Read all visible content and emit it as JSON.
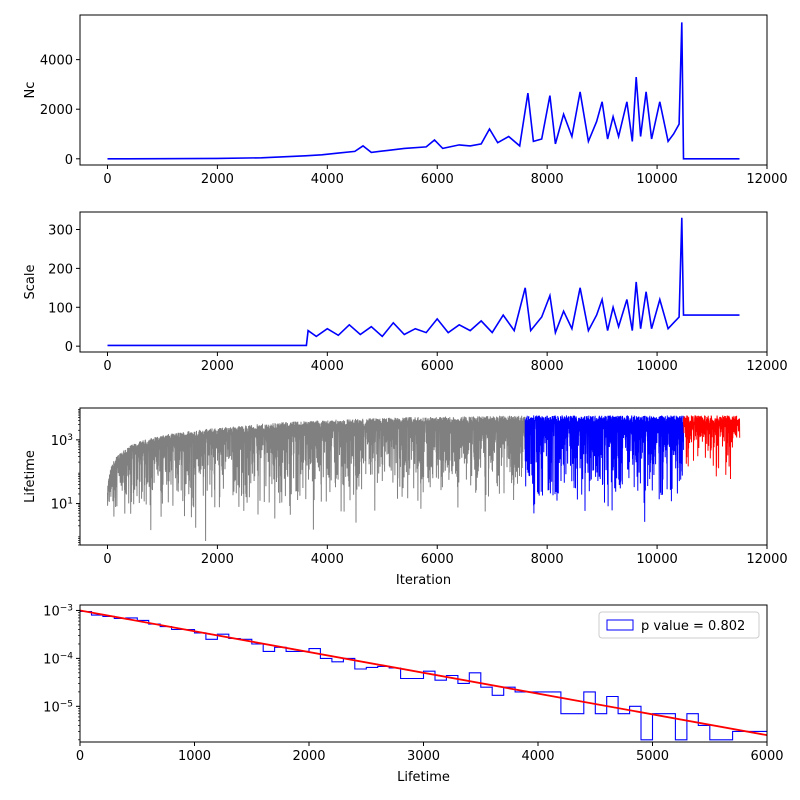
{
  "chart_data": [
    {
      "type": "line",
      "ylabel": "Nc",
      "xlim": [
        -500,
        12000
      ],
      "ylim": [
        -250,
        5800
      ],
      "x_ticks": [
        0,
        2000,
        4000,
        6000,
        8000,
        10000,
        12000
      ],
      "y_ticks": [
        0,
        2000,
        4000
      ],
      "series": [
        {
          "color": "#0000ff",
          "points": [
            [
              0,
              0
            ],
            [
              1000,
              5
            ],
            [
              2000,
              15
            ],
            [
              2800,
              40
            ],
            [
              3200,
              80
            ],
            [
              3600,
              120
            ],
            [
              3900,
              160
            ],
            [
              4200,
              230
            ],
            [
              4500,
              300
            ],
            [
              4650,
              520
            ],
            [
              4800,
              260
            ],
            [
              5100,
              340
            ],
            [
              5400,
              420
            ],
            [
              5800,
              480
            ],
            [
              5950,
              760
            ],
            [
              6100,
              420
            ],
            [
              6400,
              560
            ],
            [
              6600,
              520
            ],
            [
              6800,
              600
            ],
            [
              6950,
              1200
            ],
            [
              7100,
              650
            ],
            [
              7300,
              900
            ],
            [
              7500,
              520
            ],
            [
              7650,
              2650
            ],
            [
              7750,
              700
            ],
            [
              7900,
              800
            ],
            [
              8050,
              2550
            ],
            [
              8150,
              600
            ],
            [
              8300,
              1800
            ],
            [
              8450,
              900
            ],
            [
              8600,
              2700
            ],
            [
              8750,
              700
            ],
            [
              8900,
              1500
            ],
            [
              9000,
              2300
            ],
            [
              9100,
              800
            ],
            [
              9200,
              1700
            ],
            [
              9300,
              900
            ],
            [
              9450,
              2300
            ],
            [
              9550,
              700
            ],
            [
              9620,
              3300
            ],
            [
              9700,
              900
            ],
            [
              9800,
              2700
            ],
            [
              9900,
              800
            ],
            [
              10050,
              2300
            ],
            [
              10200,
              700
            ],
            [
              10300,
              1000
            ],
            [
              10400,
              1400
            ],
            [
              10450,
              5500
            ],
            [
              10480,
              0
            ],
            [
              11500,
              0
            ]
          ]
        }
      ]
    },
    {
      "type": "line",
      "ylabel": "Scale",
      "xlim": [
        -500,
        12000
      ],
      "ylim": [
        -15,
        345
      ],
      "x_ticks": [
        0,
        2000,
        4000,
        6000,
        8000,
        10000,
        12000
      ],
      "y_ticks": [
        0,
        100,
        200,
        300
      ],
      "series": [
        {
          "color": "#0000ff",
          "points": [
            [
              0,
              2
            ],
            [
              3620,
              2
            ],
            [
              3650,
              40
            ],
            [
              3800,
              25
            ],
            [
              4000,
              45
            ],
            [
              4200,
              28
            ],
            [
              4400,
              55
            ],
            [
              4600,
              30
            ],
            [
              4800,
              50
            ],
            [
              5000,
              25
            ],
            [
              5200,
              60
            ],
            [
              5400,
              30
            ],
            [
              5600,
              45
            ],
            [
              5800,
              35
            ],
            [
              6000,
              70
            ],
            [
              6200,
              35
            ],
            [
              6400,
              55
            ],
            [
              6600,
              40
            ],
            [
              6800,
              65
            ],
            [
              7000,
              35
            ],
            [
              7200,
              80
            ],
            [
              7400,
              40
            ],
            [
              7600,
              150
            ],
            [
              7700,
              40
            ],
            [
              7900,
              75
            ],
            [
              8050,
              130
            ],
            [
              8150,
              35
            ],
            [
              8300,
              90
            ],
            [
              8450,
              45
            ],
            [
              8600,
              150
            ],
            [
              8750,
              40
            ],
            [
              8900,
              80
            ],
            [
              9000,
              120
            ],
            [
              9100,
              40
            ],
            [
              9200,
              100
            ],
            [
              9300,
              50
            ],
            [
              9450,
              120
            ],
            [
              9550,
              40
            ],
            [
              9620,
              165
            ],
            [
              9700,
              45
            ],
            [
              9800,
              140
            ],
            [
              9900,
              45
            ],
            [
              10050,
              120
            ],
            [
              10200,
              45
            ],
            [
              10300,
              60
            ],
            [
              10400,
              75
            ],
            [
              10450,
              330
            ],
            [
              10480,
              80
            ],
            [
              11500,
              80
            ]
          ]
        }
      ]
    },
    {
      "type": "line",
      "ylabel": "Lifetime",
      "xlabel": "Iteration",
      "yscale": "log",
      "xlim": [
        -500,
        12000
      ],
      "ylim": [
        0.5,
        10000
      ],
      "x_ticks": [
        0,
        2000,
        4000,
        6000,
        8000,
        10000,
        12000
      ],
      "y_ticks": [
        10,
        1000
      ],
      "y_tick_labels": [
        "10^1",
        "10^3"
      ],
      "series": [
        {
          "color": "#808080",
          "x_range": [
            0,
            7600
          ],
          "upper_envelope": [
            [
              0,
              20
            ],
            [
              100,
              150
            ],
            [
              300,
              400
            ],
            [
              800,
              900
            ],
            [
              1500,
              1500
            ],
            [
              2500,
              2200
            ],
            [
              3500,
              3000
            ],
            [
              4500,
              3500
            ],
            [
              5500,
              4000
            ],
            [
              6500,
              4200
            ],
            [
              7600,
              4500
            ]
          ],
          "min_value": 1,
          "max_value": 6000
        },
        {
          "color": "#0000ff",
          "x_range": [
            7600,
            10480
          ],
          "upper_envelope": [
            [
              7600,
              4500
            ],
            [
              10480,
              4500
            ]
          ],
          "min_value": 1,
          "max_value": 8000
        },
        {
          "color": "#ff0000",
          "x_range": [
            10480,
            11500
          ],
          "upper_envelope": [
            [
              10480,
              4500
            ],
            [
              11500,
              4500
            ]
          ],
          "min_value": 100,
          "max_value": 6000
        }
      ]
    },
    {
      "type": "histogram",
      "xlabel": "Lifetime",
      "yscale": "log",
      "xlim": [
        0,
        6000
      ],
      "ylim": [
        1.8e-06,
        0.0013
      ],
      "x_ticks": [
        0,
        1000,
        2000,
        3000,
        4000,
        5000,
        6000
      ],
      "y_ticks": [
        1e-05,
        0.0001,
        0.001
      ],
      "y_tick_labels": [
        "10^-5",
        "10^-4",
        "10^-3"
      ],
      "legend": {
        "label": "p value = 0.802",
        "position": "upper right"
      },
      "hist": {
        "color": "#0000ff",
        "bin_width": 100,
        "bin_start": 0,
        "values": [
          0.00095,
          0.0008,
          0.00075,
          0.00068,
          0.0007,
          0.00062,
          0.00052,
          0.00046,
          0.0004,
          0.0004,
          0.00034,
          0.00025,
          0.00032,
          0.00026,
          0.00025,
          0.0002,
          0.00014,
          0.00017,
          0.00014,
          0.00014,
          0.00016,
          0.0001,
          8.5e-05,
          0.0001,
          6e-05,
          6.5e-05,
          6.8e-05,
          6.3e-05,
          3.8e-05,
          3.8e-05,
          5.4e-05,
          3.5e-05,
          4.4e-05,
          3e-05,
          5e-05,
          2.5e-05,
          1.7e-05,
          2.5e-05,
          2e-05,
          2e-05,
          2e-05,
          2e-05,
          7e-06,
          7e-06,
          2e-05,
          7e-06,
          1.6e-05,
          7e-06,
          1e-05,
          2e-06,
          7e-06,
          7e-06,
          2e-06,
          7e-06,
          4e-06,
          2e-06,
          2e-06,
          3e-06,
          3e-06,
          3e-06
        ]
      },
      "fit_line": {
        "color": "#ff0000",
        "points": [
          [
            0,
            0.001
          ],
          [
            6000,
            2.5e-06
          ]
        ]
      }
    }
  ]
}
